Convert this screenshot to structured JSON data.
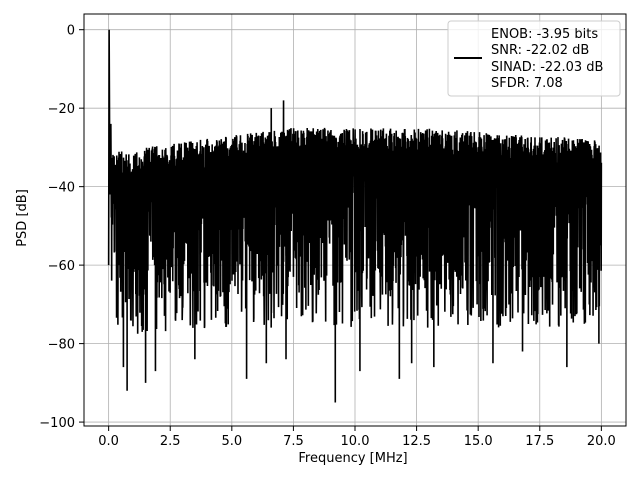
{
  "chart_data": {
    "type": "line",
    "title": "",
    "xlabel": "Frequency [MHz]",
    "ylabel": "PSD [dB]",
    "xlim": [
      -1.0,
      21.0
    ],
    "ylim": [
      -101.0,
      4.0
    ],
    "x_ticks": [
      0.0,
      2.5,
      5.0,
      7.5,
      10.0,
      12.5,
      15.0,
      17.5,
      20.0
    ],
    "x_tick_labels": [
      "0.0",
      "2.5",
      "5.0",
      "7.5",
      "10.0",
      "12.5",
      "15.0",
      "17.5",
      "20.0"
    ],
    "y_ticks": [
      0,
      -20,
      -40,
      -60,
      -80,
      -100
    ],
    "y_tick_labels": [
      "0",
      "−20",
      "−40",
      "−60",
      "−80",
      "−100"
    ],
    "grid": true,
    "legend_position": "top-right",
    "line_color": "#000000",
    "series": [
      {
        "name": "ENOB: -3.95 bits\nSNR: -22.02 dB\nSINAD: -22.03 dB\nSFDR: 7.08",
        "legend_lines": [
          "ENOB: -3.95 bits",
          "SNR: -22.02 dB",
          "SINAD: -22.03 dB",
          "SFDR: 7.08"
        ],
        "color": "#000000",
        "x_range": [
          0.0,
          20.0
        ],
        "fundamental": {
          "x": 0.02,
          "y": 0
        },
        "spurs": [
          {
            "x": 6.6,
            "y": -20
          },
          {
            "x": 7.1,
            "y": -18
          }
        ],
        "noise_upper": {
          "x": [
            0.1,
            0.5,
            2.5,
            5.0,
            7.5,
            10.0,
            12.5,
            15.0,
            17.5,
            20.0
          ],
          "y": [
            -31,
            -31,
            -29,
            -27,
            -25,
            -25,
            -25,
            -26,
            -27,
            -28
          ]
        },
        "noise_lower": {
          "x": [
            0.1,
            2.5,
            5.0,
            7.5,
            10.0,
            12.5,
            15.0,
            17.5,
            20.0
          ],
          "y": [
            -72,
            -71,
            -70,
            -70,
            -70,
            -70,
            -70,
            -70,
            -69
          ]
        },
        "deep_nulls": [
          {
            "x": 0.6,
            "y": -86
          },
          {
            "x": 0.75,
            "y": -92
          },
          {
            "x": 1.5,
            "y": -90
          },
          {
            "x": 1.9,
            "y": -87
          },
          {
            "x": 3.5,
            "y": -84
          },
          {
            "x": 5.6,
            "y": -89
          },
          {
            "x": 6.4,
            "y": -85
          },
          {
            "x": 7.2,
            "y": -84
          },
          {
            "x": 9.2,
            "y": -95
          },
          {
            "x": 10.2,
            "y": -87
          },
          {
            "x": 11.8,
            "y": -89
          },
          {
            "x": 12.3,
            "y": -85
          },
          {
            "x": 13.2,
            "y": -86
          },
          {
            "x": 15.6,
            "y": -85
          },
          {
            "x": 16.8,
            "y": -82
          },
          {
            "x": 18.6,
            "y": -86
          },
          {
            "x": 19.9,
            "y": -80
          }
        ]
      }
    ]
  }
}
